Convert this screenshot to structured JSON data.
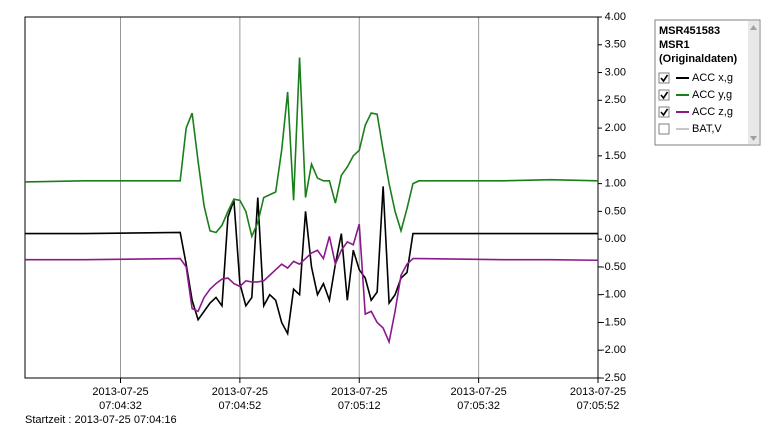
{
  "chart_data": {
    "type": "line",
    "x": [
      "2013-07-25 07:04:16",
      "2013-07-25 07:04:26",
      "2013-07-25 07:04:42",
      "2013-07-25 07:04:43",
      "2013-07-25 07:04:44",
      "2013-07-25 07:04:45",
      "2013-07-25 07:04:46",
      "2013-07-25 07:04:47",
      "2013-07-25 07:04:48",
      "2013-07-25 07:04:49",
      "2013-07-25 07:04:50",
      "2013-07-25 07:04:51",
      "2013-07-25 07:04:52",
      "2013-07-25 07:04:53",
      "2013-07-25 07:04:54",
      "2013-07-25 07:04:55",
      "2013-07-25 07:04:56",
      "2013-07-25 07:04:57",
      "2013-07-25 07:04:58",
      "2013-07-25 07:04:59",
      "2013-07-25 07:05:00",
      "2013-07-25 07:05:01",
      "2013-07-25 07:05:02",
      "2013-07-25 07:05:03",
      "2013-07-25 07:05:04",
      "2013-07-25 07:05:05",
      "2013-07-25 07:05:06",
      "2013-07-25 07:05:07",
      "2013-07-25 07:05:08",
      "2013-07-25 07:05:09",
      "2013-07-25 07:05:10",
      "2013-07-25 07:05:11",
      "2013-07-25 07:05:12",
      "2013-07-25 07:05:13",
      "2013-07-25 07:05:14",
      "2013-07-25 07:05:15",
      "2013-07-25 07:05:16",
      "2013-07-25 07:05:17",
      "2013-07-25 07:05:18",
      "2013-07-25 07:05:19",
      "2013-07-25 07:05:20",
      "2013-07-25 07:05:21",
      "2013-07-25 07:05:22",
      "2013-07-25 07:05:36",
      "2013-07-25 07:05:44",
      "2013-07-25 07:05:52"
    ],
    "series": [
      {
        "name": "ACC x,g",
        "color": "#000000",
        "values": [
          0.1,
          0.1,
          0.12,
          -0.45,
          -1.1,
          -1.45,
          -1.3,
          -1.15,
          -1.05,
          -1.2,
          0.4,
          0.7,
          -0.8,
          -1.2,
          -1.05,
          0.75,
          -1.2,
          -1.0,
          -1.1,
          -1.5,
          -1.7,
          -0.9,
          -1.0,
          0.5,
          -0.5,
          -1.0,
          -0.8,
          -1.1,
          -0.45,
          0.1,
          -1.1,
          -0.2,
          -0.55,
          -0.7,
          -1.1,
          -0.95,
          0.95,
          -1.15,
          -1.0,
          -0.7,
          -0.6,
          0.1,
          0.1,
          0.1,
          0.1,
          0.1
        ]
      },
      {
        "name": "ACC y,g",
        "color": "#1a7f1a",
        "values": [
          1.03,
          1.05,
          1.05,
          2.0,
          2.27,
          1.4,
          0.6,
          0.15,
          0.12,
          0.25,
          0.5,
          0.72,
          0.7,
          0.5,
          0.05,
          0.3,
          0.75,
          0.8,
          0.85,
          1.6,
          2.65,
          0.7,
          3.27,
          0.75,
          1.35,
          1.1,
          1.05,
          1.05,
          0.65,
          1.15,
          1.3,
          1.5,
          1.6,
          2.05,
          2.27,
          2.25,
          1.6,
          1.0,
          0.5,
          0.15,
          0.55,
          1.0,
          1.05,
          1.05,
          1.07,
          1.05
        ]
      },
      {
        "name": "ACC z,g",
        "color": "#8b1a8b",
        "values": [
          -0.37,
          -0.37,
          -0.35,
          -0.5,
          -1.25,
          -1.3,
          -1.05,
          -0.9,
          -0.8,
          -0.72,
          -0.7,
          -0.8,
          -0.85,
          -0.75,
          -0.77,
          -0.77,
          -0.75,
          -0.65,
          -0.55,
          -0.45,
          -0.52,
          -0.4,
          -0.45,
          -0.35,
          -0.25,
          -0.2,
          -0.35,
          0.05,
          -0.45,
          -0.2,
          -0.05,
          -0.1,
          0.27,
          -1.35,
          -1.3,
          -1.5,
          -1.6,
          -1.85,
          -1.3,
          -0.65,
          -0.45,
          -0.35,
          -0.35,
          -0.37,
          -0.37,
          -0.38
        ]
      }
    ],
    "hidden_series": [
      {
        "name": "BAT,V",
        "color": "#c8c8c8"
      }
    ],
    "xlim": [
      "2013-07-25 07:04:16",
      "2013-07-25 07:05:52"
    ],
    "xticks": [
      "2013-07-25 07:04:32",
      "2013-07-25 07:04:52",
      "2013-07-25 07:05:12",
      "2013-07-25 07:05:32",
      "2013-07-25 07:05:52"
    ],
    "ylim": [
      -2.5,
      4
    ],
    "yticks": [
      {
        "value": 4,
        "label": "4.00"
      },
      {
        "value": 3.5,
        "label": "3.50"
      },
      {
        "value": 3,
        "label": "3.00"
      },
      {
        "value": 2.5,
        "label": "2.50"
      },
      {
        "value": 2,
        "label": "2.00"
      },
      {
        "value": 1.5,
        "label": "1.50"
      },
      {
        "value": 1,
        "label": "1.00"
      },
      {
        "value": 0.5,
        "label": "0.50"
      },
      {
        "value": 0,
        "label": "0.00"
      },
      {
        "value": -0.5,
        "label": "-0.50"
      },
      {
        "value": -1,
        "label": "-1.00"
      },
      {
        "value": -1.5,
        "label": "-1.50"
      },
      {
        "value": -2,
        "label": "-2.00"
      },
      {
        "value": -2.5,
        "label": "-2.50"
      }
    ],
    "x_grid": true,
    "legend_title": [
      "MSR451583",
      "MSR1",
      "(Originaldaten)"
    ],
    "footer": "Startzeit : 2013-07-25 07:04:16"
  }
}
